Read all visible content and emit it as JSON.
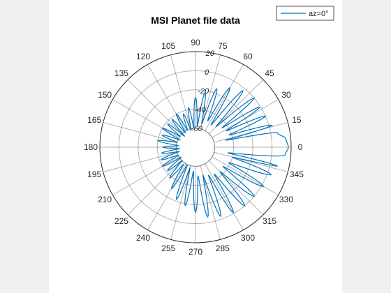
{
  "colors": {
    "background": "#f0f0f0",
    "axes_background": "#ffffff",
    "grid": "#262626",
    "series": "#0072bd"
  },
  "chart_data": {
    "type": "line",
    "projection": "polar",
    "title": "MSI Planet file data",
    "theta_unit": "degrees",
    "theta_ticks": [
      0,
      15,
      30,
      45,
      60,
      75,
      90,
      105,
      120,
      135,
      150,
      165,
      180,
      195,
      210,
      225,
      240,
      255,
      270,
      285,
      300,
      315,
      330,
      345
    ],
    "r_ticks": [
      -60,
      -40,
      -20,
      0,
      20
    ],
    "r_tick_labels": [
      "-60",
      "-40",
      "-20",
      "0",
      "20"
    ],
    "rlim": [
      -80,
      20
    ],
    "r_tick_label_angle_deg": 80,
    "grid": true,
    "legend_location": "top-right",
    "series": [
      {
        "name": "az=0°",
        "color": "#0072bd",
        "theta": [
          0,
          5,
          10,
          13,
          16,
          20,
          24,
          28,
          32,
          36,
          40,
          45,
          50,
          55,
          60,
          65,
          70,
          75,
          80,
          85,
          90,
          95,
          100,
          105,
          110,
          115,
          120,
          125,
          130,
          135,
          140,
          145,
          150,
          155,
          160,
          165,
          170,
          175,
          180,
          185,
          190,
          195,
          200,
          205,
          210,
          215,
          220,
          225,
          230,
          235,
          240,
          245,
          250,
          255,
          260,
          265,
          270,
          275,
          280,
          285,
          290,
          295,
          300,
          305,
          310,
          315,
          320,
          325,
          330,
          335,
          340,
          345,
          347,
          350,
          355,
          360
        ],
        "r": [
          17,
          15,
          7,
          -48,
          3,
          -43,
          0,
          -44,
          -1,
          -46,
          0,
          -50,
          -3,
          -52,
          -8,
          -50,
          -15,
          -55,
          -22,
          -58,
          -28,
          -60,
          -38,
          -62,
          -43,
          -60,
          -40,
          -62,
          -42,
          -64,
          -42,
          -60,
          -40,
          -62,
          -43,
          -60,
          -40,
          -62,
          -46,
          -63,
          -44,
          -62,
          -42,
          -60,
          -40,
          -62,
          -42,
          -60,
          -38,
          -58,
          -30,
          -60,
          -22,
          -58,
          -18,
          -55,
          -12,
          -50,
          -6,
          -50,
          -3,
          -48,
          -1,
          -46,
          0,
          -44,
          0,
          -45,
          2,
          -42,
          4,
          -40,
          8,
          -46,
          14,
          17
        ]
      }
    ]
  }
}
